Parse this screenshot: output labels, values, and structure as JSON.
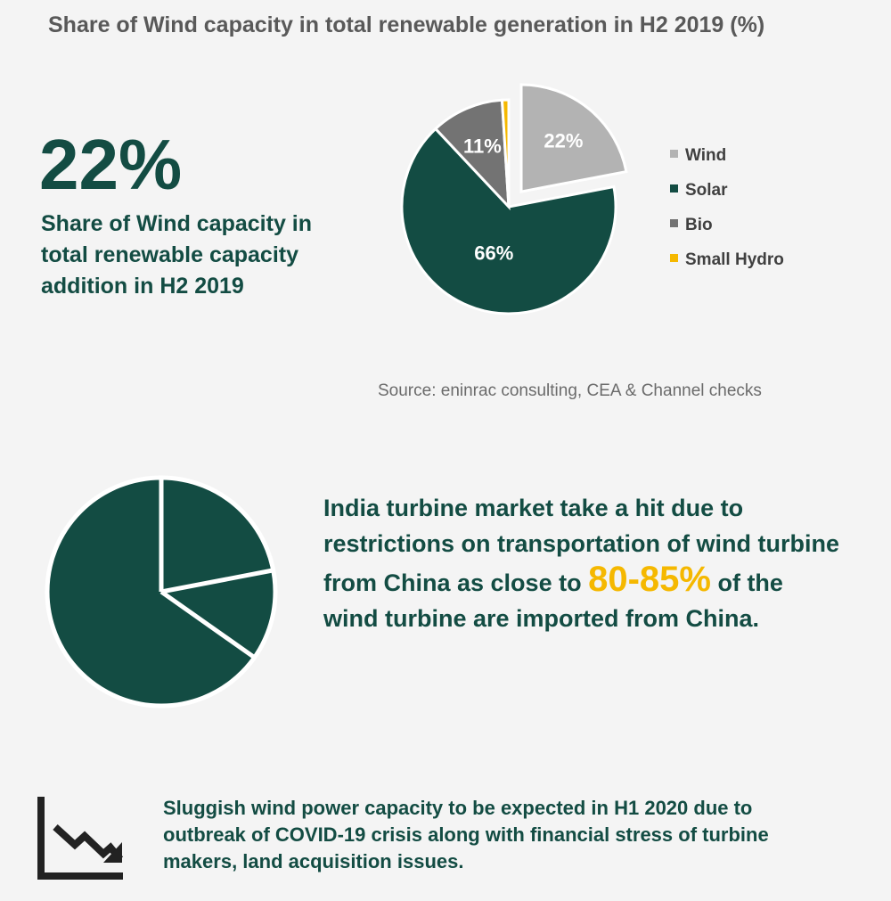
{
  "title": "Share of Wind capacity in total renewable generation in H2 2019 (%)",
  "highlight": {
    "value": "22%",
    "caption": "Share of Wind capacity in total renewable capacity addition in H2 2019"
  },
  "source": "Source: eninrac consulting, CEA & Channel checks",
  "colors": {
    "dark_green": "#134c43",
    "accent_yellow": "#f5b800",
    "wind": "#b3b3b3",
    "bio": "#737373"
  },
  "chart_data": {
    "type": "pie",
    "categories": [
      "Wind",
      "Solar",
      "Bio",
      "Small Hydro"
    ],
    "values": [
      22,
      66,
      11,
      1
    ],
    "labels": [
      "22%",
      "66%",
      "11%",
      "1%"
    ],
    "colors": [
      "#b3b3b3",
      "#134c43",
      "#737373",
      "#f5b800"
    ],
    "exploded": "Wind",
    "legend": "right"
  },
  "china_text": {
    "before": "India turbine market take a hit due to restrictions on transportation of wind turbine from China as close to ",
    "highlight": "80-85%",
    "after": " of the wind turbine are imported from China."
  },
  "covid_text": "Sluggish wind power capacity to be expected in H1 2020 due to outbreak of COVID-19 crisis along with financial stress of turbine makers, land acquisition issues.",
  "icons": {
    "pie_decoration": "pie-chart-icon",
    "trend": "declining-chart-icon"
  }
}
